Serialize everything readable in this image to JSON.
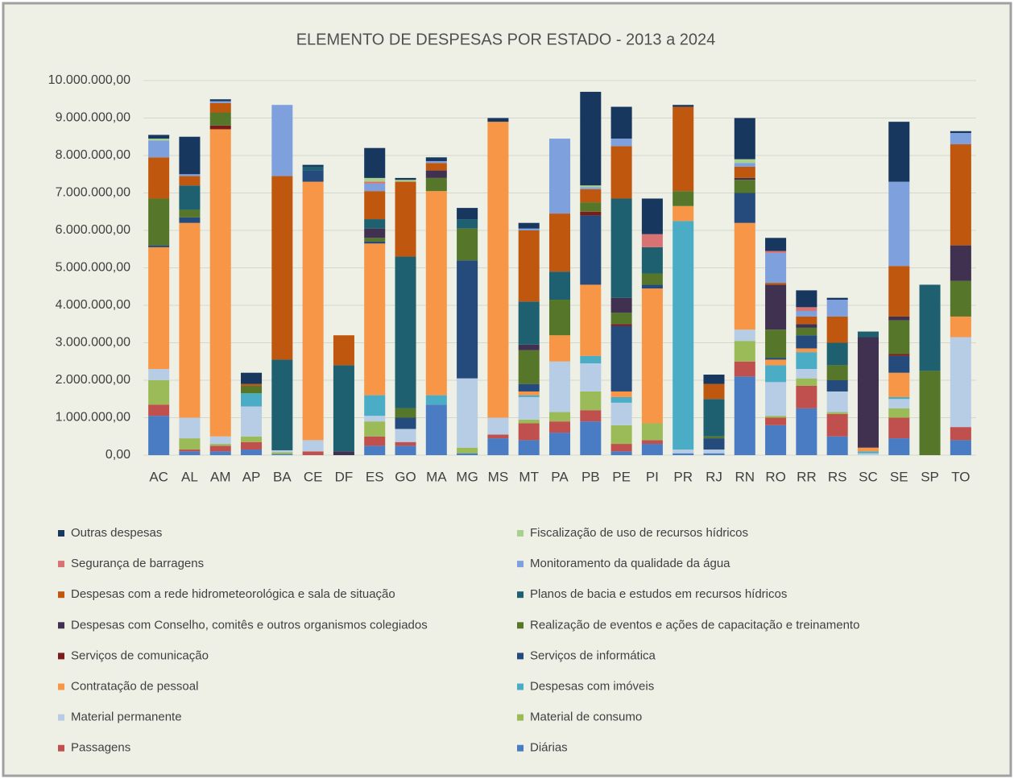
{
  "chart_data": {
    "type": "stacked_bar",
    "title": "ELEMENTO DE DESPESAS POR ESTADO - 2013 a 2024",
    "categories": [
      "AC",
      "AL",
      "AM",
      "AP",
      "BA",
      "CE",
      "DF",
      "ES",
      "GO",
      "MA",
      "MG",
      "MS",
      "MT",
      "PA",
      "PB",
      "PE",
      "PI",
      "PR",
      "RJ",
      "RN",
      "RO",
      "RR",
      "RS",
      "SC",
      "SE",
      "SP",
      "TO"
    ],
    "ylim": [
      0,
      10000000
    ],
    "yticks": [
      {
        "value": 0,
        "label": "0,00"
      },
      {
        "value": 1000000,
        "label": "1.000.000,00"
      },
      {
        "value": 2000000,
        "label": "2.000.000,00"
      },
      {
        "value": 3000000,
        "label": "3.000.000,00"
      },
      {
        "value": 4000000,
        "label": "4.000.000,00"
      },
      {
        "value": 5000000,
        "label": "5.000.000,00"
      },
      {
        "value": 6000000,
        "label": "6.000.000,00"
      },
      {
        "value": 7000000,
        "label": "7.000.000,00"
      },
      {
        "value": 8000000,
        "label": "8.000.000,00"
      },
      {
        "value": 9000000,
        "label": "9.000.000,00"
      },
      {
        "value": 10000000,
        "label": "10.000.000,00"
      }
    ],
    "grid": true,
    "legend": "bottom",
    "series": [
      {
        "name": "Diárias",
        "color": "#4a7cc4",
        "values": [
          1050000,
          100000,
          100000,
          150000,
          30000,
          0,
          0,
          250000,
          250000,
          1350000,
          50000,
          450000,
          400000,
          600000,
          900000,
          100000,
          300000,
          50000,
          50000,
          2100000,
          800000,
          1250000,
          500000,
          0,
          450000,
          0,
          400000
        ]
      },
      {
        "name": "Passagens",
        "color": "#c0504d",
        "values": [
          300000,
          50000,
          150000,
          200000,
          0,
          100000,
          0,
          250000,
          100000,
          0,
          0,
          100000,
          450000,
          300000,
          300000,
          200000,
          100000,
          0,
          0,
          400000,
          200000,
          600000,
          600000,
          0,
          550000,
          0,
          350000
        ]
      },
      {
        "name": "Material de consumo",
        "color": "#9bbb59",
        "values": [
          650000,
          300000,
          50000,
          150000,
          50000,
          0,
          0,
          400000,
          0,
          0,
          150000,
          0,
          100000,
          250000,
          500000,
          500000,
          450000,
          0,
          0,
          550000,
          50000,
          200000,
          50000,
          0,
          250000,
          0,
          0
        ]
      },
      {
        "name": "Material permanente",
        "color": "#b7cde6",
        "values": [
          300000,
          550000,
          200000,
          800000,
          50000,
          300000,
          0,
          150000,
          350000,
          0,
          1850000,
          450000,
          600000,
          1350000,
          750000,
          600000,
          0,
          100000,
          100000,
          300000,
          900000,
          250000,
          550000,
          50000,
          250000,
          0,
          2400000
        ]
      },
      {
        "name": "Despesas com imóveis",
        "color": "#4bacc6",
        "values": [
          0,
          0,
          0,
          350000,
          0,
          0,
          0,
          550000,
          0,
          250000,
          0,
          0,
          50000,
          0,
          200000,
          150000,
          0,
          6100000,
          0,
          0,
          450000,
          450000,
          0,
          50000,
          50000,
          0,
          0
        ]
      },
      {
        "name": "Contratação de pessoal",
        "color": "#f79646",
        "values": [
          3250000,
          5200000,
          8200000,
          0,
          0,
          6900000,
          0,
          4050000,
          0,
          5450000,
          0,
          7900000,
          100000,
          700000,
          1900000,
          150000,
          3600000,
          400000,
          0,
          2850000,
          150000,
          100000,
          0,
          100000,
          650000,
          0,
          550000
        ]
      },
      {
        "name": "Serviços de informática",
        "color": "#254a7c",
        "values": [
          50000,
          150000,
          0,
          0,
          0,
          300000,
          0,
          50000,
          300000,
          0,
          3150000,
          0,
          200000,
          0,
          1850000,
          1750000,
          100000,
          0,
          300000,
          800000,
          50000,
          350000,
          300000,
          0,
          450000,
          0,
          0
        ]
      },
      {
        "name": "Serviços de comunicação",
        "color": "#7b1c1c",
        "values": [
          0,
          0,
          100000,
          0,
          0,
          0,
          0,
          0,
          0,
          0,
          0,
          0,
          0,
          0,
          100000,
          50000,
          0,
          0,
          0,
          0,
          0,
          0,
          0,
          0,
          50000,
          0,
          0
        ]
      },
      {
        "name": "Realização de eventos e ações de capacitação e treinamento",
        "color": "#56772a",
        "values": [
          1250000,
          200000,
          350000,
          200000,
          0,
          0,
          0,
          100000,
          250000,
          350000,
          850000,
          0,
          900000,
          950000,
          250000,
          300000,
          300000,
          400000,
          50000,
          350000,
          750000,
          200000,
          400000,
          0,
          900000,
          2250000,
          950000
        ]
      },
      {
        "name": "Despesas com Conselho, comitês e outros organismos colegiados",
        "color": "#403151",
        "values": [
          0,
          0,
          0,
          0,
          0,
          0,
          100000,
          250000,
          0,
          200000,
          0,
          0,
          150000,
          0,
          0,
          400000,
          0,
          0,
          0,
          50000,
          1200000,
          100000,
          0,
          2950000,
          100000,
          0,
          950000
        ]
      },
      {
        "name": "Planos de bacia e estudos em recursos hídricos",
        "color": "#1f6070",
        "values": [
          0,
          650000,
          0,
          0,
          2420000,
          100000,
          2300000,
          250000,
          4050000,
          0,
          250000,
          0,
          1150000,
          750000,
          0,
          2650000,
          700000,
          0,
          1000000,
          0,
          0,
          0,
          600000,
          150000,
          0,
          2300000,
          0
        ]
      },
      {
        "name": "Despesas com a rede hidrometeorológica e sala de situação",
        "color": "#c0570f",
        "values": [
          1100000,
          250000,
          250000,
          50000,
          4900000,
          0,
          800000,
          750000,
          2000000,
          200000,
          0,
          0,
          1900000,
          1550000,
          350000,
          1400000,
          0,
          2250000,
          400000,
          300000,
          50000,
          200000,
          700000,
          0,
          1350000,
          0,
          2700000
        ]
      },
      {
        "name": "Monitoramento da qualidade da água",
        "color": "#7ea1dd",
        "values": [
          450000,
          50000,
          50000,
          0,
          1900000,
          0,
          0,
          200000,
          0,
          50000,
          0,
          0,
          50000,
          2000000,
          50000,
          200000,
          0,
          0,
          0,
          100000,
          800000,
          150000,
          450000,
          0,
          2250000,
          0,
          300000
        ]
      },
      {
        "name": "Segurança de barragens",
        "color": "#d97272",
        "values": [
          0,
          0,
          0,
          0,
          0,
          0,
          0,
          50000,
          0,
          0,
          0,
          0,
          0,
          0,
          0,
          0,
          350000,
          0,
          0,
          0,
          50000,
          100000,
          0,
          0,
          0,
          0,
          0
        ]
      },
      {
        "name": "Fiscalização de uso de recursos hídricos",
        "color": "#a9d08e",
        "values": [
          50000,
          0,
          0,
          0,
          0,
          0,
          0,
          100000,
          50000,
          0,
          0,
          0,
          0,
          0,
          50000,
          0,
          0,
          0,
          0,
          100000,
          0,
          0,
          0,
          0,
          0,
          0,
          0
        ]
      },
      {
        "name": "Outras despesas",
        "color": "#17375e",
        "values": [
          100000,
          1000000,
          50000,
          300000,
          0,
          50000,
          0,
          800000,
          50000,
          100000,
          300000,
          100000,
          150000,
          0,
          2500000,
          850000,
          950000,
          50000,
          250000,
          1100000,
          350000,
          450000,
          50000,
          0,
          1600000,
          0,
          50000
        ]
      }
    ]
  }
}
